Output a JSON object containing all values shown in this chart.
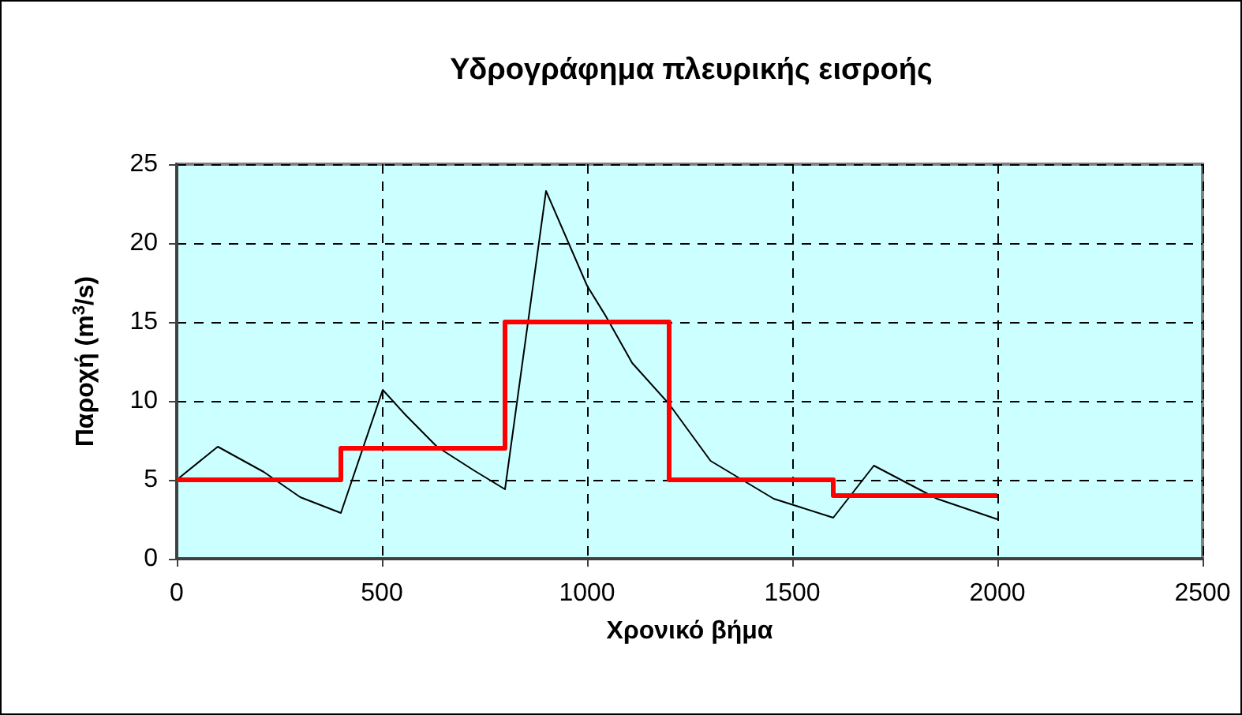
{
  "chart_data": {
    "type": "line",
    "title": "Υδρογράφημα πλευρικής εισροής",
    "xlabel": "Χρονικό βήμα",
    "ylabel": "Παροχή (m$^{3}$/s)",
    "xlim": [
      0,
      2500
    ],
    "xticks": [
      0,
      500,
      1000,
      1500,
      2000,
      2500
    ],
    "ylim": [
      0,
      25
    ],
    "yticks": [
      0,
      5,
      10,
      15,
      20,
      25
    ],
    "grid": true,
    "marker": "none",
    "series": [
      {
        "color": "#000000",
        "x": [
          0,
          100,
          212,
          301,
          400,
          502,
          558,
          634,
          724,
          800,
          900,
          1000,
          1045,
          1110,
          1200,
          1301,
          1455,
          1600,
          1699,
          1853,
          2000
        ],
        "values": [
          5,
          7.1,
          5.5,
          3.9,
          2.9,
          10.7,
          9.1,
          7.1,
          5.6,
          4.4,
          23.3,
          17.3,
          15.4,
          12.4,
          9.8,
          6.2,
          3.8,
          2.6,
          5.9,
          3.8,
          2.5
        ]
      },
      {
        "type": "step",
        "color": "#ff0000",
        "x": [
          0,
          400,
          800,
          1200,
          1600,
          2000
        ],
        "values": [
          5,
          7,
          15,
          5,
          4,
          4
        ]
      }
    ]
  }
}
